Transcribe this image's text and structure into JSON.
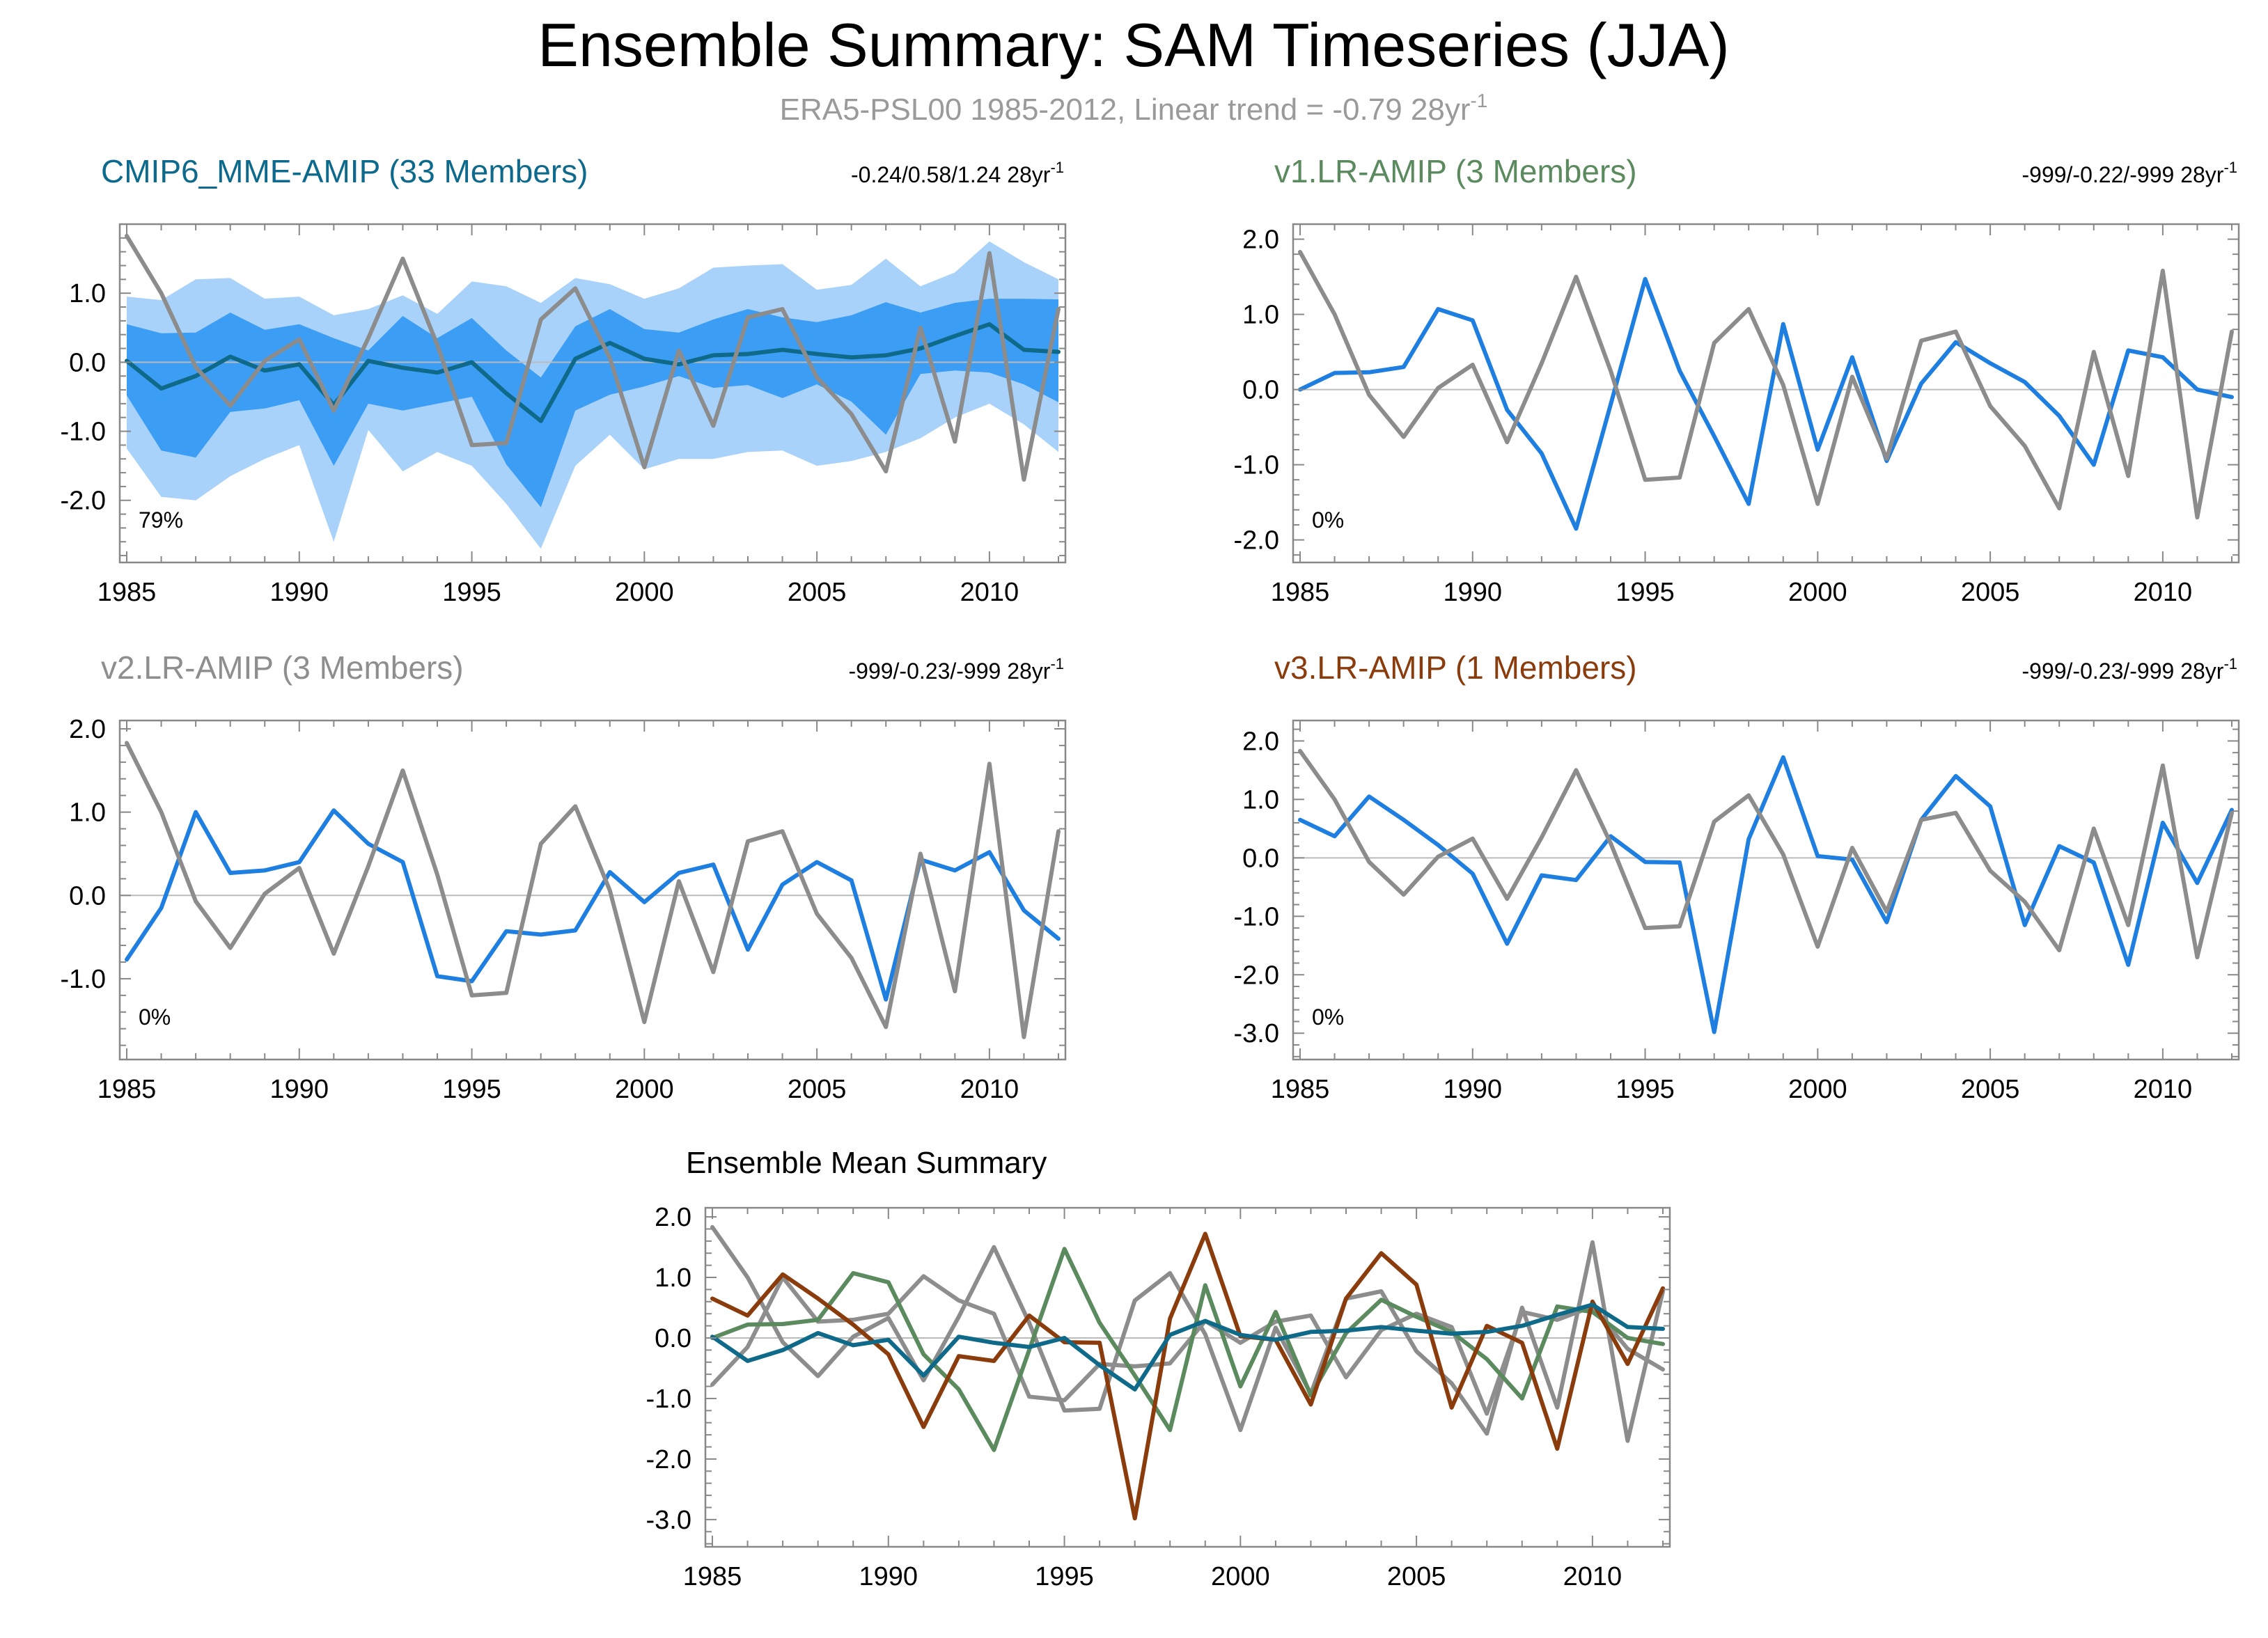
{
  "figure": {
    "title": "Ensemble Summary: SAM Timeseries (JJA)",
    "subtitle": "ERA5-PSL00 1985-2012, Linear trend = -0.79 28yr",
    "subtitle_sup": "-1"
  },
  "colors": {
    "obs": "#8c8c8c",
    "model_line": "#1e7fe0",
    "mme_title": "#0e6a8c",
    "mme_mean": "#0f6a8a",
    "band_outer": "#a8d2fa",
    "band_inner": "#3c9df5",
    "v1": "#5a8a5e",
    "v2": "#8e8e8e",
    "v3": "#8a3c0c",
    "zero_line": "#bbbbbb"
  },
  "chart_data": [
    {
      "id": "mme",
      "type": "line",
      "title": "CMIP6_MME-AMIP (33 Members)",
      "title_color_key": "mme_title",
      "trend_text": "-0.24/0.58/1.24 28yr",
      "trend_sup": "-1",
      "percent_label": "79%",
      "xlim": [
        1985,
        2012
      ],
      "ylim": [
        -2.9,
        2.0
      ],
      "yticks": [
        -2.0,
        -1.0,
        0.0,
        1.0
      ],
      "ytick_labels": [
        "-2.0",
        "-1.0",
        "0.0",
        "1.0"
      ],
      "xticks": [
        1985,
        1990,
        1995,
        2000,
        2005,
        2010
      ],
      "xtick_labels": [
        "1985",
        "1990",
        "1995",
        "2000",
        "2005",
        "2010"
      ],
      "x": [
        1985,
        1986,
        1987,
        1988,
        1989,
        1990,
        1991,
        1992,
        1993,
        1994,
        1995,
        1996,
        1997,
        1998,
        1999,
        2000,
        2001,
        2002,
        2003,
        2004,
        2005,
        2006,
        2007,
        2008,
        2009,
        2010,
        2011,
        2012
      ],
      "bands": [
        {
          "name": "outer spread",
          "color_key": "band_outer",
          "upper": [
            0.95,
            0.9,
            1.2,
            1.22,
            0.92,
            0.95,
            0.68,
            0.77,
            0.97,
            0.7,
            1.17,
            1.1,
            0.86,
            1.22,
            1.13,
            0.92,
            1.07,
            1.37,
            1.4,
            1.42,
            1.05,
            1.12,
            1.5,
            1.1,
            1.3,
            1.75,
            1.45,
            1.2
          ],
          "lower": [
            -1.25,
            -1.95,
            -2.0,
            -1.65,
            -1.4,
            -1.2,
            -2.6,
            -0.98,
            -1.58,
            -1.3,
            -1.5,
            -2.05,
            -2.7,
            -1.5,
            -1.05,
            -1.55,
            -1.4,
            -1.4,
            -1.3,
            -1.28,
            -1.5,
            -1.43,
            -1.3,
            -1.1,
            -0.8,
            -0.6,
            -0.9,
            -1.3
          ]
        },
        {
          "name": "inner spread",
          "color_key": "band_inner",
          "upper": [
            0.55,
            0.42,
            0.43,
            0.72,
            0.47,
            0.55,
            0.35,
            0.17,
            0.67,
            0.35,
            0.64,
            0.17,
            -0.22,
            0.52,
            0.77,
            0.48,
            0.43,
            0.62,
            0.77,
            0.65,
            0.58,
            0.68,
            0.87,
            0.72,
            0.86,
            0.92,
            0.92,
            0.91
          ],
          "lower": [
            -0.48,
            -1.28,
            -1.38,
            -0.72,
            -0.67,
            -0.55,
            -1.5,
            -0.6,
            -0.7,
            -0.6,
            -0.5,
            -1.48,
            -2.1,
            -0.7,
            -0.47,
            -0.35,
            -0.2,
            -0.37,
            -0.33,
            -0.52,
            -0.32,
            -0.57,
            -1.05,
            -0.17,
            -0.12,
            -0.15,
            -0.32,
            -0.58
          ]
        }
      ],
      "series": [
        {
          "name": "CMIP6_MME-AMIP ensemble mean",
          "color_key": "mme_mean",
          "values": [
            0.02,
            -0.38,
            -0.2,
            0.08,
            -0.12,
            -0.03,
            -0.62,
            0.02,
            -0.08,
            -0.15,
            0.0,
            -0.45,
            -0.85,
            0.05,
            0.28,
            0.05,
            -0.03,
            0.1,
            0.12,
            0.18,
            0.12,
            0.07,
            0.1,
            0.2,
            0.38,
            0.55,
            0.18,
            0.15
          ]
        },
        {
          "name": "ERA5-PSL00",
          "color_key": "obs",
          "values": [
            1.83,
            1.0,
            -0.07,
            -0.63,
            0.02,
            0.33,
            -0.7,
            0.35,
            1.5,
            0.25,
            -1.2,
            -1.17,
            0.62,
            1.07,
            0.06,
            -1.52,
            0.17,
            -0.92,
            0.65,
            0.77,
            -0.22,
            -0.75,
            -1.58,
            0.5,
            -1.15,
            1.58,
            -1.7,
            0.77
          ]
        }
      ]
    },
    {
      "id": "v1",
      "type": "line",
      "title": "v1.LR-AMIP (3 Members)",
      "title_color_key": "v1",
      "trend_text": "-999/-0.22/-999 28yr",
      "trend_sup": "-1",
      "percent_label": "0%",
      "xlim": [
        1985,
        2012
      ],
      "ylim": [
        -2.3,
        2.2
      ],
      "yticks": [
        -2.0,
        -1.0,
        0.0,
        1.0,
        2.0
      ],
      "ytick_labels": [
        "-2.0",
        "-1.0",
        "0.0",
        "1.0",
        "2.0"
      ],
      "xticks": [
        1985,
        1990,
        1995,
        2000,
        2005,
        2010
      ],
      "xtick_labels": [
        "1985",
        "1990",
        "1995",
        "2000",
        "2005",
        "2010"
      ],
      "x": [
        1985,
        1986,
        1987,
        1988,
        1989,
        1990,
        1991,
        1992,
        1993,
        1994,
        1995,
        1996,
        1997,
        1998,
        1999,
        2000,
        2001,
        2002,
        2003,
        2004,
        2005,
        2006,
        2007,
        2008,
        2009,
        2010,
        2011,
        2012
      ],
      "series": [
        {
          "name": "v1.LR-AMIP ensemble mean",
          "color_key": "model_line",
          "values": [
            0.0,
            0.22,
            0.23,
            0.3,
            1.07,
            0.92,
            -0.27,
            -0.85,
            -1.85,
            -0.2,
            1.47,
            0.25,
            -0.62,
            -1.52,
            0.87,
            -0.8,
            0.43,
            -0.95,
            0.08,
            0.63,
            0.35,
            0.1,
            -0.35,
            -1.0,
            0.52,
            0.43,
            0.0,
            -0.1
          ]
        },
        {
          "name": "ERA5-PSL00",
          "color_key": "obs",
          "values": [
            1.83,
            1.0,
            -0.07,
            -0.63,
            0.02,
            0.33,
            -0.7,
            0.35,
            1.5,
            0.25,
            -1.2,
            -1.17,
            0.62,
            1.07,
            0.06,
            -1.52,
            0.17,
            -0.92,
            0.65,
            0.77,
            -0.22,
            -0.75,
            -1.58,
            0.5,
            -1.15,
            1.58,
            -1.7,
            0.77
          ]
        }
      ]
    },
    {
      "id": "v2",
      "type": "line",
      "title": "v2.LR-AMIP (3 Members)",
      "title_color_key": "v2",
      "trend_text": "-999/-0.23/-999 28yr",
      "trend_sup": "-1",
      "percent_label": "0%",
      "xlim": [
        1985,
        2012
      ],
      "ylim": [
        -1.97,
        2.1
      ],
      "yticks": [
        -1.0,
        0.0,
        1.0,
        2.0
      ],
      "ytick_labels": [
        "-1.0",
        "0.0",
        "1.0",
        "2.0"
      ],
      "xticks": [
        1985,
        1990,
        1995,
        2000,
        2005,
        2010
      ],
      "xtick_labels": [
        "1985",
        "1990",
        "1995",
        "2000",
        "2005",
        "2010"
      ],
      "x": [
        1985,
        1986,
        1987,
        1988,
        1989,
        1990,
        1991,
        1992,
        1993,
        1994,
        1995,
        1996,
        1997,
        1998,
        1999,
        2000,
        2001,
        2002,
        2003,
        2004,
        2005,
        2006,
        2007,
        2008,
        2009,
        2010,
        2011,
        2012
      ],
      "series": [
        {
          "name": "v2.LR-AMIP ensemble mean",
          "color_key": "model_line",
          "values": [
            -0.77,
            -0.15,
            1.0,
            0.27,
            0.3,
            0.4,
            1.02,
            0.62,
            0.4,
            -0.97,
            -1.03,
            -0.43,
            -0.47,
            -0.42,
            0.28,
            -0.08,
            0.27,
            0.37,
            -0.65,
            0.13,
            0.4,
            0.18,
            -1.25,
            0.43,
            0.3,
            0.52,
            -0.18,
            -0.52
          ]
        },
        {
          "name": "ERA5-PSL00",
          "color_key": "obs",
          "values": [
            1.83,
            1.0,
            -0.07,
            -0.63,
            0.02,
            0.33,
            -0.7,
            0.35,
            1.5,
            0.25,
            -1.2,
            -1.17,
            0.62,
            1.07,
            0.06,
            -1.52,
            0.17,
            -0.92,
            0.65,
            0.77,
            -0.22,
            -0.75,
            -1.58,
            0.5,
            -1.15,
            1.58,
            -1.7,
            0.77
          ]
        }
      ]
    },
    {
      "id": "v3",
      "type": "line",
      "title": "v3.LR-AMIP (1 Members)",
      "title_color_key": "v3",
      "trend_text": "-999/-0.23/-999 28yr",
      "trend_sup": "-1",
      "percent_label": "0%",
      "xlim": [
        1985,
        2012
      ],
      "ylim": [
        -3.45,
        2.35
      ],
      "yticks": [
        -3.0,
        -2.0,
        -1.0,
        0.0,
        1.0,
        2.0
      ],
      "ytick_labels": [
        "-3.0",
        "-2.0",
        "-1.0",
        "0.0",
        "1.0",
        "2.0"
      ],
      "xticks": [
        1985,
        1990,
        1995,
        2000,
        2005,
        2010
      ],
      "xtick_labels": [
        "1985",
        "1990",
        "1995",
        "2000",
        "2005",
        "2010"
      ],
      "x": [
        1985,
        1986,
        1987,
        1988,
        1989,
        1990,
        1991,
        1992,
        1993,
        1994,
        1995,
        1996,
        1997,
        1998,
        1999,
        2000,
        2001,
        2002,
        2003,
        2004,
        2005,
        2006,
        2007,
        2008,
        2009,
        2010,
        2011,
        2012
      ],
      "series": [
        {
          "name": "v3.LR-AMIP",
          "color_key": "model_line",
          "values": [
            0.65,
            0.37,
            1.05,
            0.65,
            0.22,
            -0.27,
            -1.47,
            -0.3,
            -0.38,
            0.37,
            -0.07,
            -0.08,
            -2.98,
            0.32,
            1.72,
            0.03,
            -0.03,
            -1.1,
            0.65,
            1.4,
            0.88,
            -1.15,
            0.2,
            -0.08,
            -1.83,
            0.6,
            -0.43,
            0.82
          ]
        },
        {
          "name": "ERA5-PSL00",
          "color_key": "obs",
          "values": [
            1.83,
            1.0,
            -0.07,
            -0.63,
            0.02,
            0.33,
            -0.7,
            0.35,
            1.5,
            0.25,
            -1.2,
            -1.17,
            0.62,
            1.07,
            0.06,
            -1.52,
            0.17,
            -0.92,
            0.65,
            0.77,
            -0.22,
            -0.75,
            -1.58,
            0.5,
            -1.15,
            1.58,
            -1.7,
            0.77
          ]
        }
      ]
    },
    {
      "id": "summary",
      "type": "line",
      "title": "Ensemble Mean Summary",
      "title_color_key": "",
      "trend_text": "",
      "trend_sup": "",
      "percent_label": "",
      "xlim": [
        1985,
        2012
      ],
      "ylim": [
        -3.45,
        2.15
      ],
      "yticks": [
        -3.0,
        -2.0,
        -1.0,
        0.0,
        1.0,
        2.0
      ],
      "ytick_labels": [
        "-3.0",
        "-2.0",
        "-1.0",
        "0.0",
        "1.0",
        "2.0"
      ],
      "xticks": [
        1985,
        1990,
        1995,
        2000,
        2005,
        2010
      ],
      "xtick_labels": [
        "1985",
        "1990",
        "1995",
        "2000",
        "2005",
        "2010"
      ],
      "x": [
        1985,
        1986,
        1987,
        1988,
        1989,
        1990,
        1991,
        1992,
        1993,
        1994,
        1995,
        1996,
        1997,
        1998,
        1999,
        2000,
        2001,
        2002,
        2003,
        2004,
        2005,
        2006,
        2007,
        2008,
        2009,
        2010,
        2011,
        2012
      ],
      "series": [
        {
          "name": "ERA5-PSL00",
          "color_key": "obs",
          "values": [
            1.83,
            1.0,
            -0.07,
            -0.63,
            0.02,
            0.33,
            -0.7,
            0.35,
            1.5,
            0.25,
            -1.2,
            -1.17,
            0.62,
            1.07,
            0.06,
            -1.52,
            0.17,
            -0.92,
            0.65,
            0.77,
            -0.22,
            -0.75,
            -1.58,
            0.5,
            -1.15,
            1.58,
            -1.7,
            0.77
          ]
        },
        {
          "name": "v2.LR-AMIP",
          "color_key": "v2",
          "values": [
            -0.77,
            -0.15,
            1.0,
            0.27,
            0.3,
            0.4,
            1.02,
            0.62,
            0.4,
            -0.97,
            -1.03,
            -0.43,
            -0.47,
            -0.42,
            0.28,
            -0.08,
            0.27,
            0.37,
            -0.65,
            0.13,
            0.4,
            0.18,
            -1.25,
            0.43,
            0.3,
            0.52,
            -0.18,
            -0.52
          ]
        },
        {
          "name": "v1.LR-AMIP",
          "color_key": "v1",
          "values": [
            0.0,
            0.22,
            0.23,
            0.3,
            1.07,
            0.92,
            -0.27,
            -0.85,
            -1.85,
            -0.2,
            1.47,
            0.25,
            -0.62,
            -1.52,
            0.87,
            -0.8,
            0.43,
            -0.95,
            0.08,
            0.63,
            0.35,
            0.1,
            -0.35,
            -1.0,
            0.52,
            0.43,
            0.0,
            -0.1
          ]
        },
        {
          "name": "v3.LR-AMIP",
          "color_key": "v3",
          "values": [
            0.65,
            0.37,
            1.05,
            0.65,
            0.22,
            -0.27,
            -1.47,
            -0.3,
            -0.38,
            0.37,
            -0.07,
            -0.08,
            -2.98,
            0.32,
            1.72,
            0.03,
            -0.03,
            -1.1,
            0.65,
            1.4,
            0.88,
            -1.15,
            0.2,
            -0.08,
            -1.83,
            0.6,
            -0.43,
            0.82
          ]
        },
        {
          "name": "CMIP6_MME-AMIP",
          "color_key": "mme_mean",
          "values": [
            0.02,
            -0.38,
            -0.2,
            0.08,
            -0.12,
            -0.03,
            -0.62,
            0.02,
            -0.08,
            -0.15,
            0.0,
            -0.45,
            -0.85,
            0.05,
            0.28,
            0.05,
            -0.03,
            0.1,
            0.12,
            0.18,
            0.12,
            0.07,
            0.1,
            0.2,
            0.38,
            0.55,
            0.18,
            0.15
          ]
        }
      ]
    }
  ]
}
